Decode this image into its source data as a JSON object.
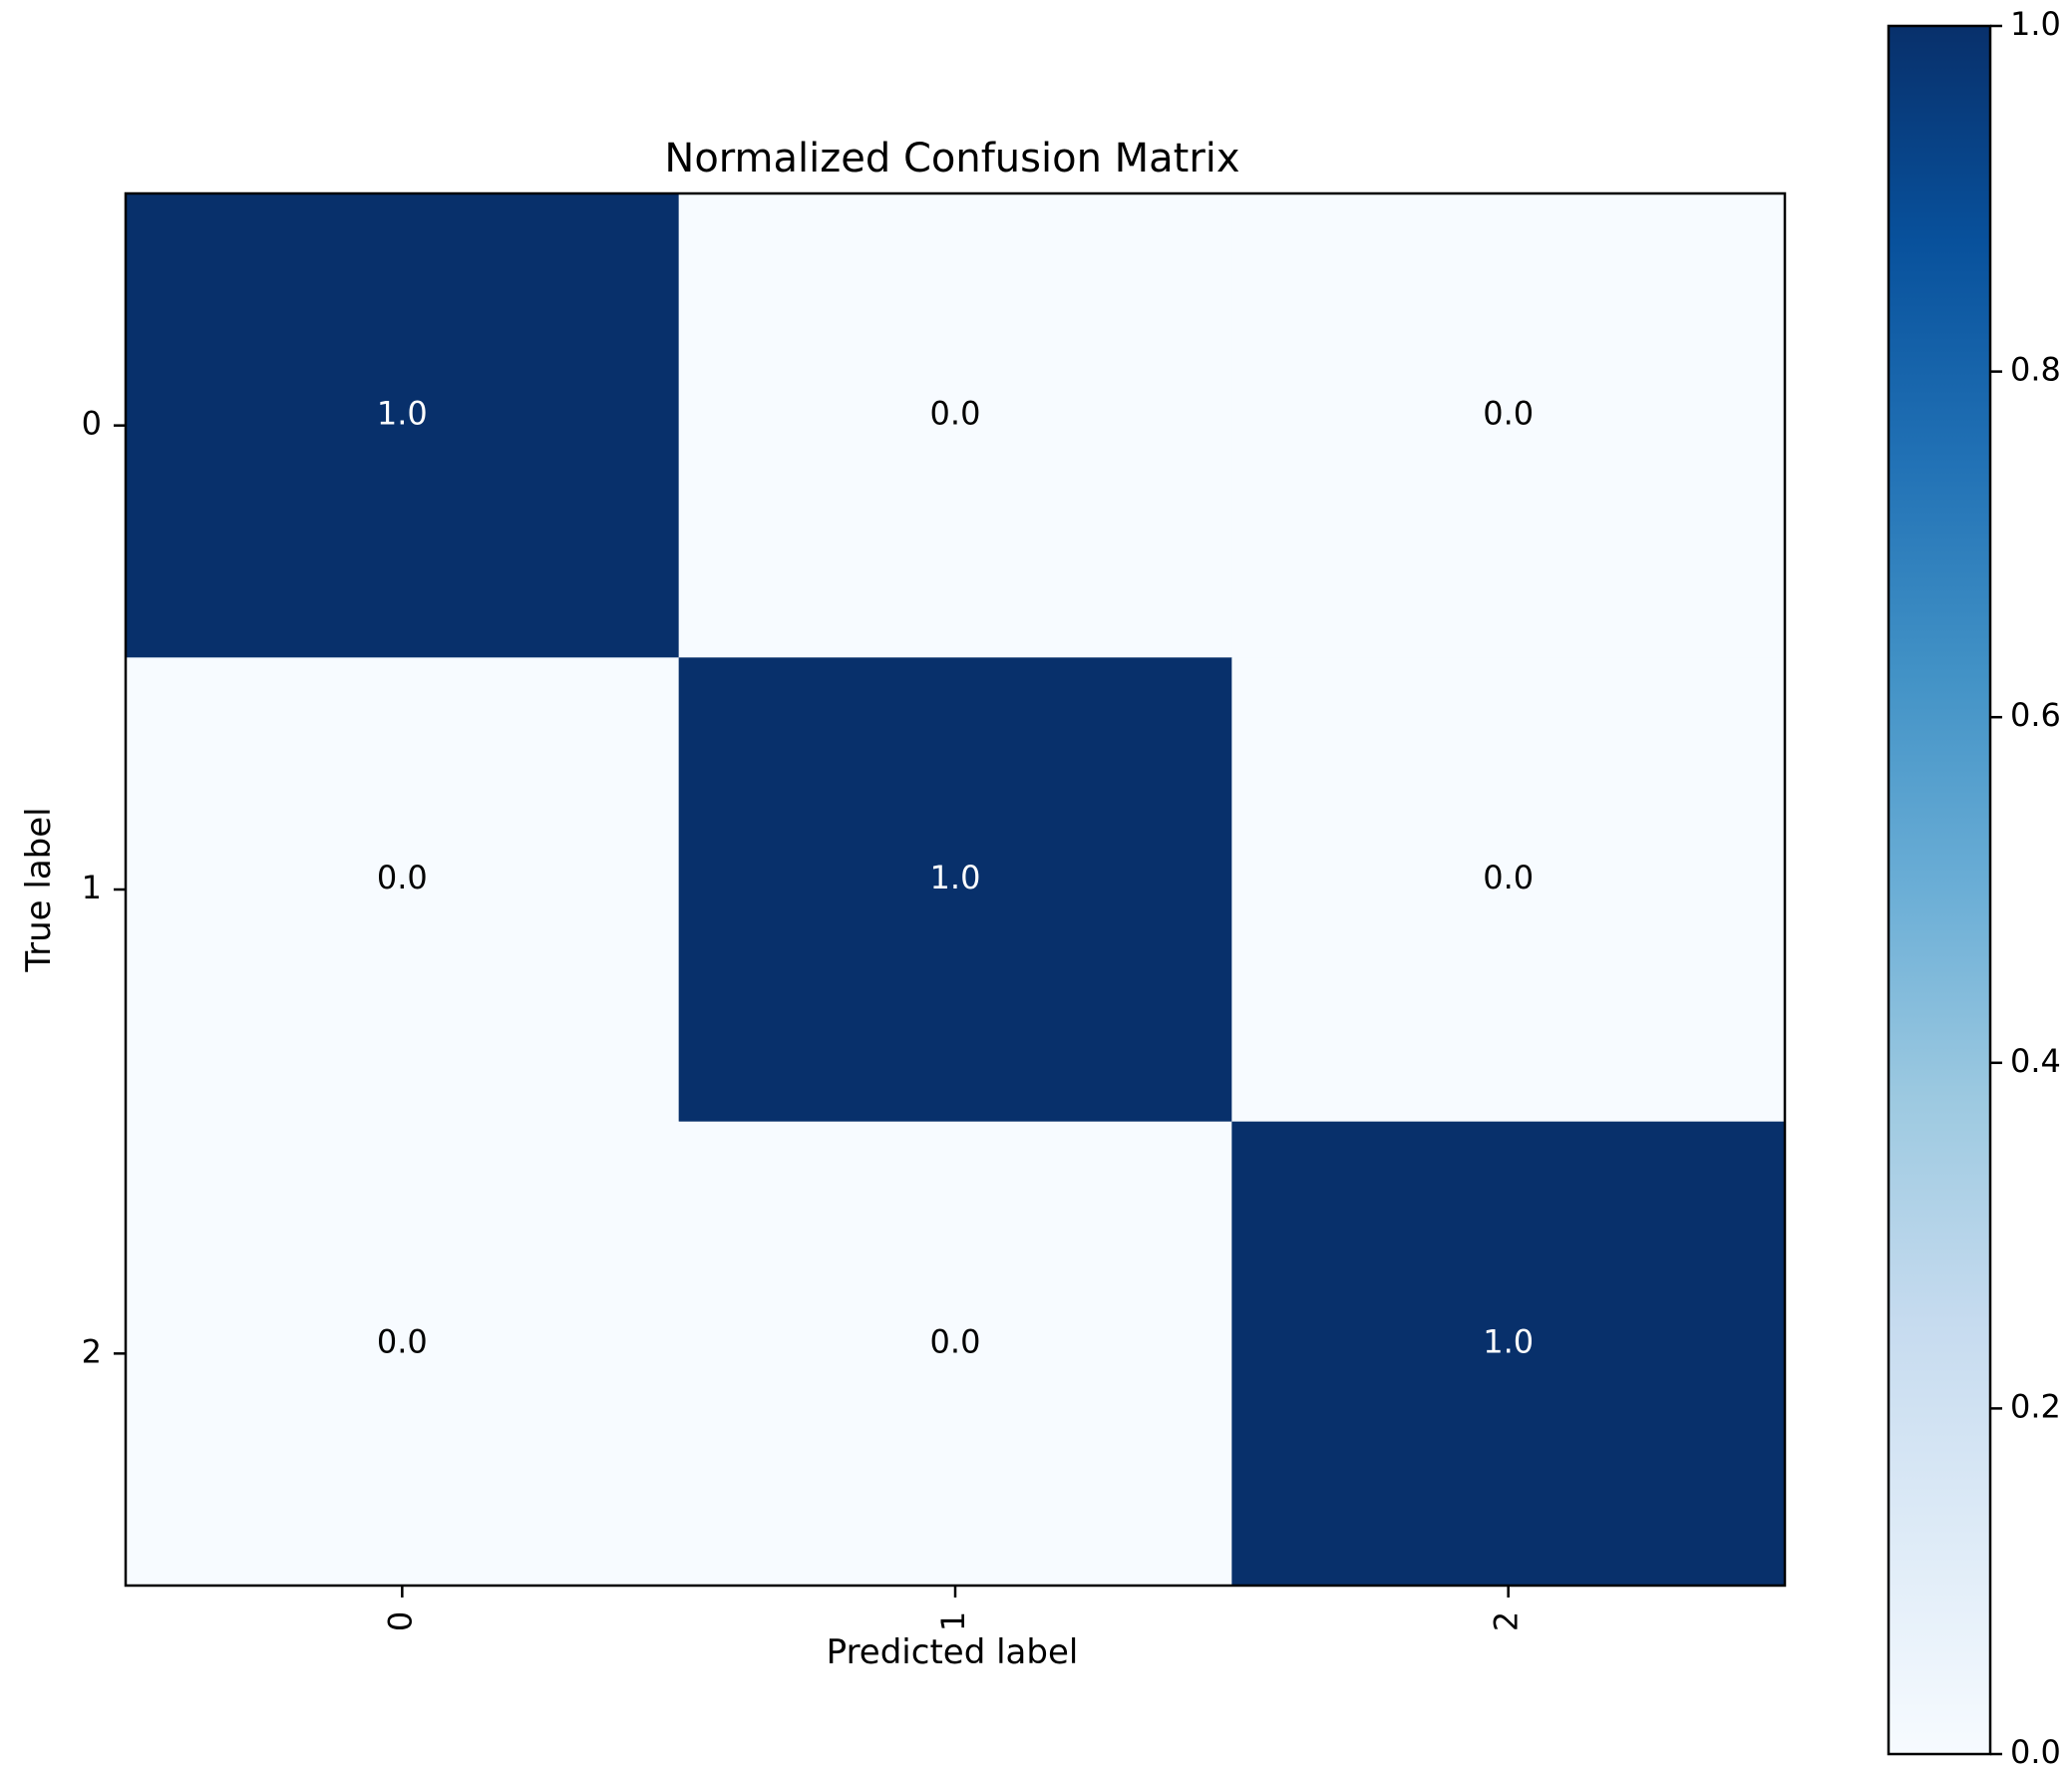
{
  "chart_data": {
    "type": "heatmap",
    "title": "Normalized Confusion Matrix",
    "xlabel": "Predicted label",
    "ylabel": "True label",
    "x_categories": [
      "0",
      "1",
      "2"
    ],
    "y_categories": [
      "0",
      "1",
      "2"
    ],
    "matrix": [
      [
        1.0,
        0.0,
        0.0
      ],
      [
        0.0,
        1.0,
        0.0
      ],
      [
        0.0,
        0.0,
        1.0
      ]
    ],
    "cell_labels": [
      [
        "1.0",
        "0.0",
        "0.0"
      ],
      [
        "0.0",
        "1.0",
        "0.0"
      ],
      [
        "0.0",
        "0.0",
        "1.0"
      ]
    ],
    "x_tick_rotation": "vertical",
    "colormap": "Blues",
    "colorbar": {
      "range": [
        0.0,
        1.0
      ],
      "ticks": [
        0.0,
        0.2,
        0.4,
        0.6,
        0.8,
        1.0
      ],
      "tick_labels": [
        "0.0",
        "0.2",
        "0.4",
        "0.6",
        "0.8",
        "1.0"
      ]
    },
    "colors": {
      "low": "#f7fbff",
      "high": "#08306b",
      "text_on_dark": "#ffffff",
      "text_on_light": "#000000",
      "stops": [
        "#f7fbff",
        "#deebf7",
        "#c6dbef",
        "#9ecae1",
        "#6baed6",
        "#4292c6",
        "#2171b5",
        "#08519c",
        "#08306b"
      ]
    }
  }
}
